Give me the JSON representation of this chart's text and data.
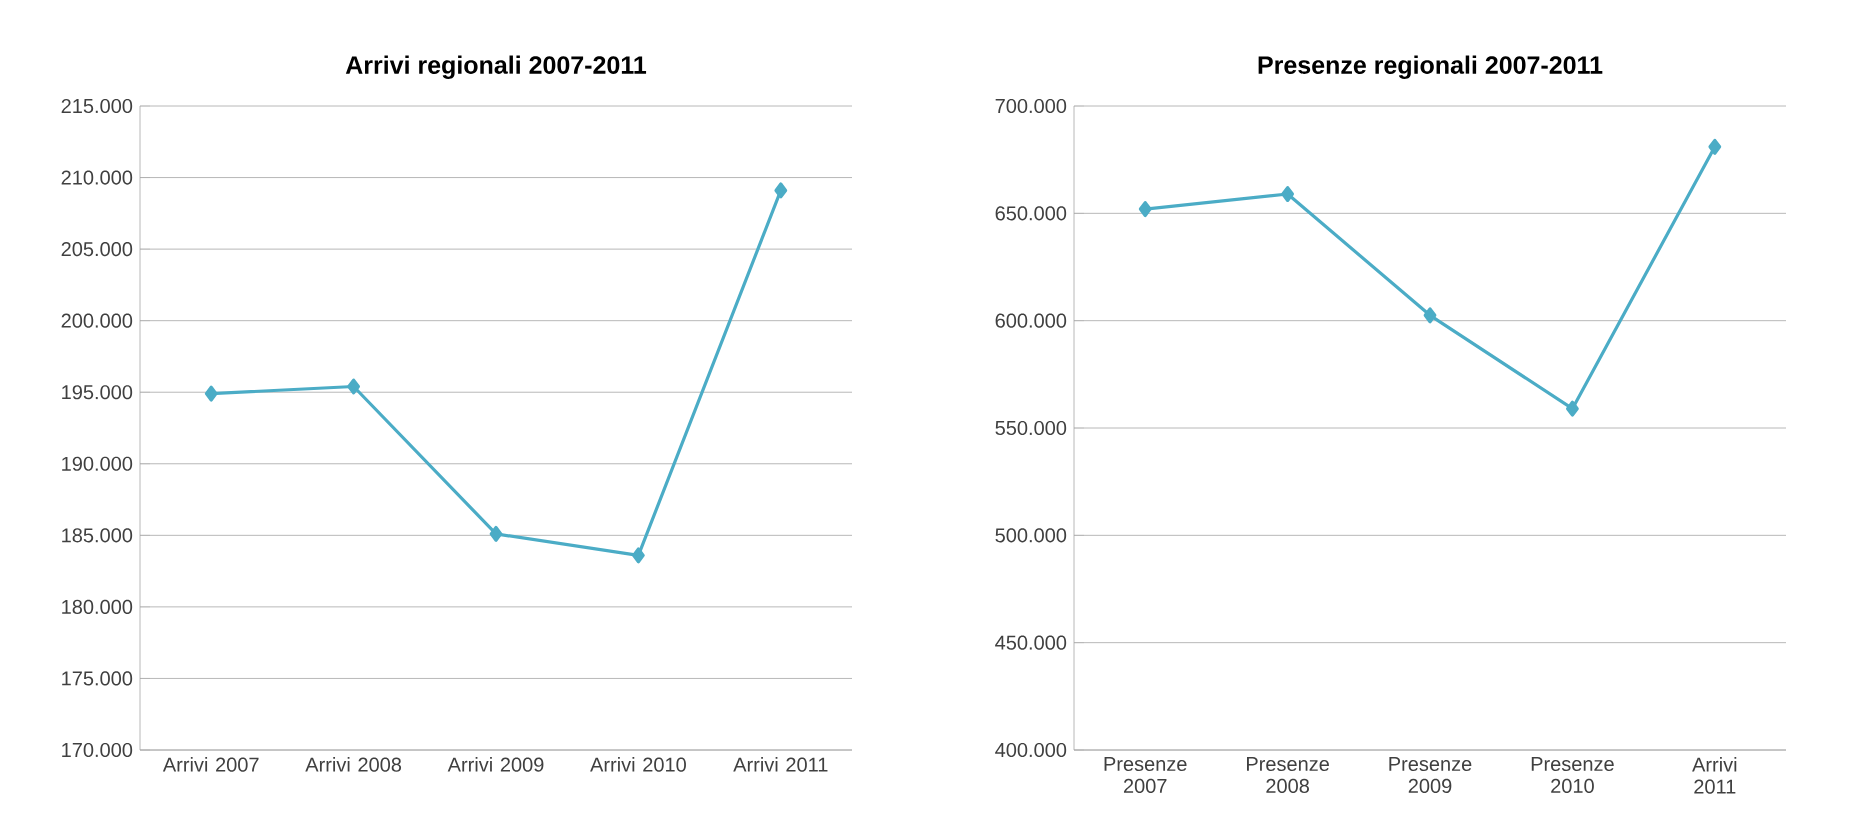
{
  "chart_data": [
    {
      "type": "line",
      "title": "Arrivi regionali 2007-2011",
      "categories": [
        "Arrivi 2007",
        "Arrivi 2008",
        "Arrivi 2009",
        "Arrivi 2010",
        "Arrivi 2011"
      ],
      "series": [
        {
          "color": "#4bacc6",
          "values": [
            194900,
            195400,
            185100,
            183600,
            209100
          ]
        }
      ],
      "ylim": [
        170000,
        215000
      ],
      "yticks": [
        {
          "value": 170000,
          "label": "170.000"
        },
        {
          "value": 175000,
          "label": "175.000"
        },
        {
          "value": 180000,
          "label": "180.000"
        },
        {
          "value": 185000,
          "label": "185.000"
        },
        {
          "value": 190000,
          "label": "190.000"
        },
        {
          "value": 195000,
          "label": "195.000"
        },
        {
          "value": 200000,
          "label": "200.000"
        },
        {
          "value": 205000,
          "label": "205.000"
        },
        {
          "value": 210000,
          "label": "210.000"
        },
        {
          "value": 215000,
          "label": "215.000"
        }
      ],
      "grid": "y",
      "marker": "diamond",
      "line_style": "solid"
    },
    {
      "type": "line",
      "title": "Presenze regionali 2007-2011",
      "categories": [
        "Presenze 2007",
        "Presenze 2008",
        "Presenze 2009",
        "Presenze 2010",
        "Arrivi 2011"
      ],
      "series": [
        {
          "color": "#4bacc6",
          "values": [
            652000,
            659000,
            602500,
            559000,
            681000
          ]
        }
      ],
      "ylim": [
        400000,
        700000
      ],
      "yticks": [
        {
          "value": 400000,
          "label": "400.000"
        },
        {
          "value": 450000,
          "label": "450.000"
        },
        {
          "value": 500000,
          "label": "500.000"
        },
        {
          "value": 550000,
          "label": "550.000"
        },
        {
          "value": 600000,
          "label": "600.000"
        },
        {
          "value": 650000,
          "label": "650.000"
        },
        {
          "value": 700000,
          "label": "700.000"
        }
      ],
      "grid": "y",
      "marker": "diamond",
      "line_style": "solid"
    }
  ]
}
